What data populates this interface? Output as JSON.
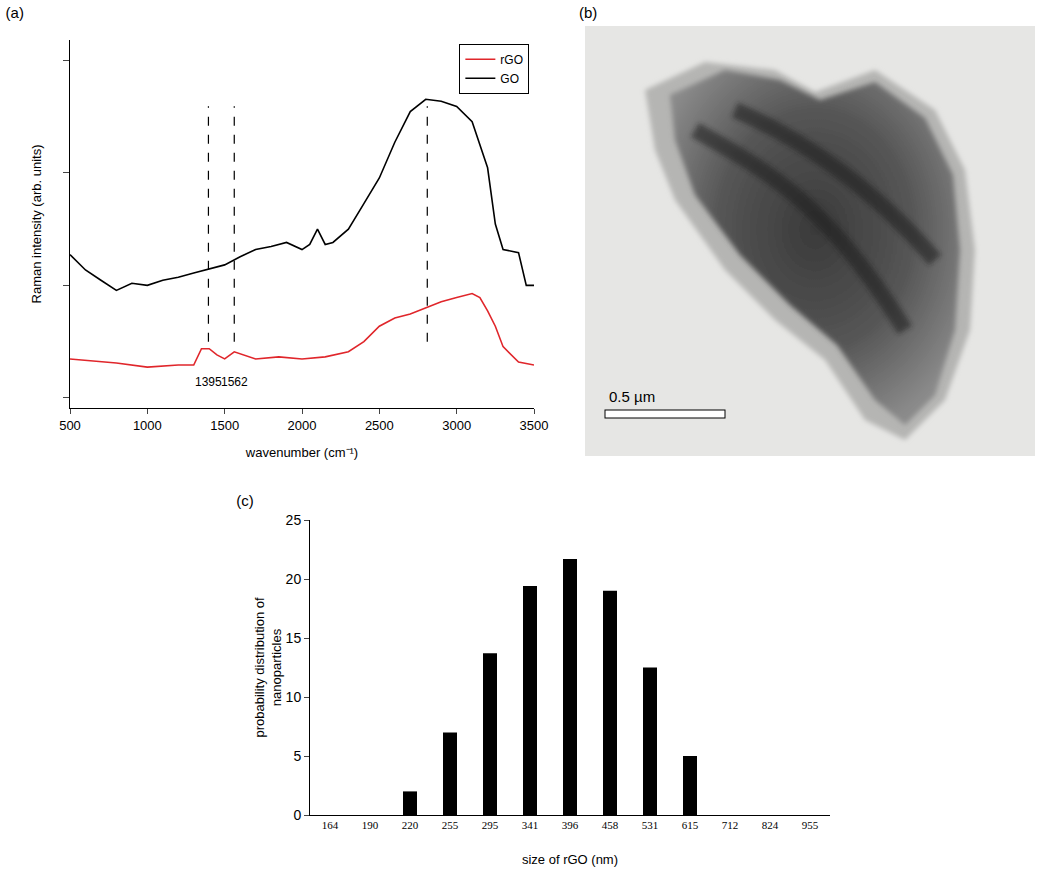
{
  "chart_data": [
    {
      "type": "line",
      "title": "(a)",
      "x_label": "wavenumber (cm⁻¹)",
      "y_label": "Raman intensity (arb. units)",
      "series": [
        {
          "name": "rGO",
          "color": "#e0262b",
          "x": [
            500,
            800,
            1000,
            1200,
            1300,
            1350,
            1400,
            1450,
            1500,
            1562,
            1700,
            1850,
            2000,
            2150,
            2300,
            2400,
            2500,
            2600,
            2700,
            2800,
            2900,
            3000,
            3100,
            3150,
            3200,
            3250,
            3300,
            3400,
            3500
          ],
          "values": [
            0.48,
            0.44,
            0.4,
            0.42,
            0.42,
            0.58,
            0.58,
            0.52,
            0.48,
            0.55,
            0.48,
            0.5,
            0.48,
            0.5,
            0.55,
            0.65,
            0.8,
            0.88,
            0.92,
            0.98,
            1.04,
            1.08,
            1.12,
            1.08,
            0.95,
            0.8,
            0.6,
            0.45,
            0.42
          ]
        },
        {
          "name": "GO",
          "color": "#000000",
          "x": [
            500,
            600,
            700,
            800,
            900,
            1000,
            1100,
            1200,
            1300,
            1400,
            1500,
            1600,
            1700,
            1800,
            1900,
            2000,
            2050,
            2100,
            2150,
            2200,
            2300,
            2400,
            2500,
            2600,
            2700,
            2800,
            2900,
            3000,
            3100,
            3200,
            3250,
            3300,
            3400,
            3450,
            3500
          ],
          "values": [
            1.5,
            1.35,
            1.25,
            1.15,
            1.22,
            1.2,
            1.25,
            1.28,
            1.32,
            1.36,
            1.4,
            1.48,
            1.55,
            1.58,
            1.62,
            1.55,
            1.6,
            1.75,
            1.6,
            1.62,
            1.75,
            2.0,
            2.25,
            2.6,
            2.9,
            3.02,
            3.0,
            2.95,
            2.8,
            2.35,
            1.8,
            1.55,
            1.52,
            1.2,
            1.2
          ]
        }
      ],
      "xlim": [
        500,
        3500
      ],
      "xticks": [
        500,
        1000,
        1500,
        2000,
        2500,
        3000,
        3500
      ],
      "ylim": [
        0,
        3.6
      ],
      "yticks": [
        0.1,
        1.2,
        2.3,
        3.4
      ],
      "tick_labels": "x",
      "grid": false,
      "legend": "top right",
      "reference_lines": [
        1395,
        1562,
        2810
      ],
      "annotations": [
        {
          "x": 1395,
          "text": "1395"
        },
        {
          "x": 1562,
          "text": "1562"
        }
      ]
    },
    {
      "type": "bar",
      "title": "(c)",
      "x_label": "size of rGO (nm)",
      "y_label": "probability distribution of nanoparticles",
      "categories": [
        "164",
        "190",
        "220",
        "255",
        "295",
        "341",
        "396",
        "458",
        "531",
        "615",
        "712",
        "824",
        "955"
      ],
      "values": [
        0,
        0,
        2,
        7,
        13.7,
        19.4,
        21.7,
        19,
        12.5,
        5,
        0,
        0,
        0
      ],
      "color": "#000000",
      "ylim": [
        0,
        25
      ],
      "yticks": [
        0,
        5,
        10,
        15,
        20,
        25
      ],
      "grid": false
    }
  ],
  "image": {
    "title": "(b)",
    "scale_bar": "0.5 µm"
  }
}
